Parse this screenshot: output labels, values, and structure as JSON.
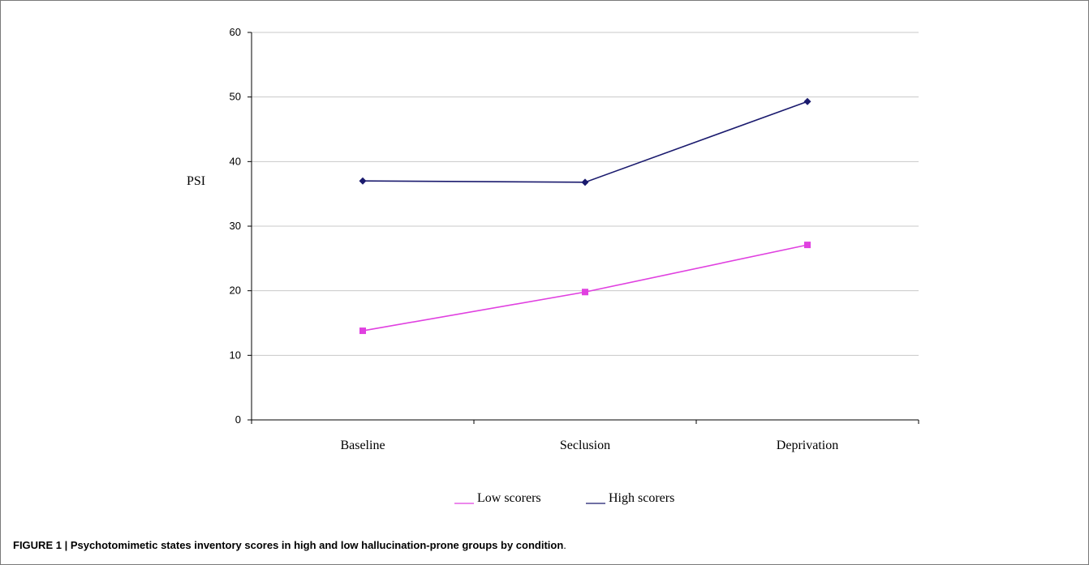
{
  "chart_data": {
    "type": "line",
    "categories": [
      "Baseline",
      "Seclusion",
      "Deprivation"
    ],
    "ylabel": "PSI",
    "xlabel": "",
    "ylim": [
      0,
      60
    ],
    "yticks": [
      0,
      10,
      20,
      30,
      40,
      50,
      60
    ],
    "grid": true,
    "legend_position": "bottom",
    "series": [
      {
        "name": "Low scorers",
        "values": [
          13.8,
          19.8,
          27.1
        ],
        "color": "#e040e0",
        "marker": "square"
      },
      {
        "name": "High scorers",
        "values": [
          37.0,
          36.8,
          49.3
        ],
        "color": "#1a1a6e",
        "marker": "diamond"
      }
    ]
  },
  "caption": {
    "label": "FIGURE 1 | Psychotomimetic states inventory scores in high and low hallucination-prone groups by condition",
    "end": "."
  },
  "colors": {
    "grid": "#c8c8c8",
    "axis": "#000000"
  }
}
